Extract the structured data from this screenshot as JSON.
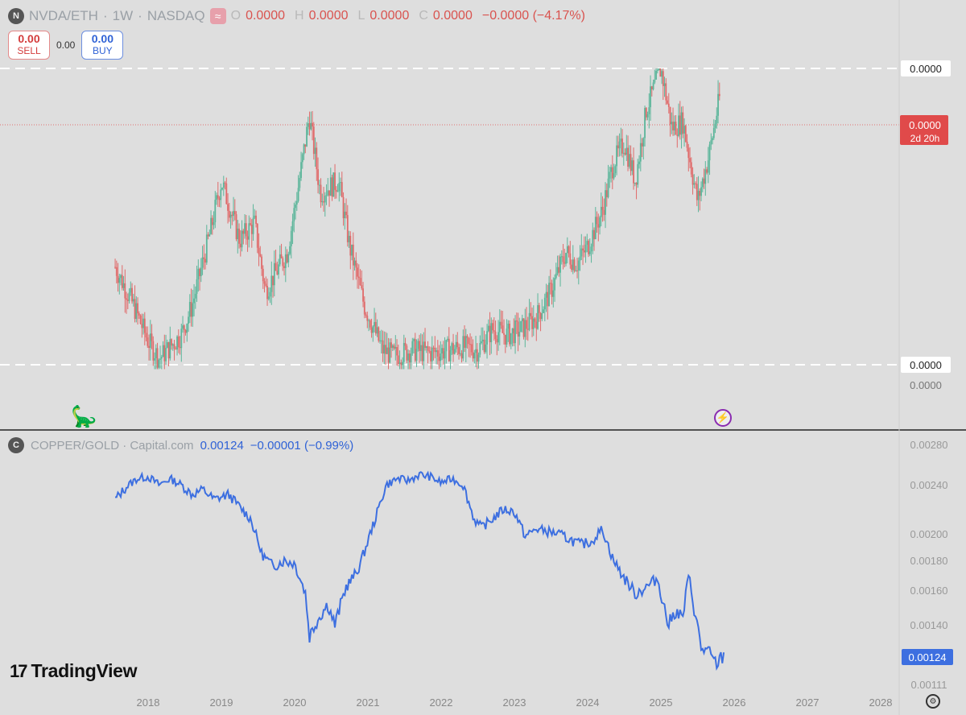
{
  "header": {
    "symbol": "NVDA/ETH",
    "dot": "·",
    "interval": "1W",
    "exchange": "NASDAQ",
    "o_label": "O",
    "o_val": "0.0000",
    "h_label": "H",
    "h_val": "0.0000",
    "l_label": "L",
    "l_val": "0.0000",
    "c_label": "C",
    "c_val": "0.0000",
    "change": "−0.0000 (−4.17%)"
  },
  "trade": {
    "sell_price": "0.00",
    "sell_label": "SELL",
    "spread": "0.00",
    "buy_price": "0.00",
    "buy_label": "BUY"
  },
  "sub_header": {
    "symbol": "COPPER/GOLD · Capital.com",
    "value": "0.00124",
    "change": "−0.00001 (−0.99%)"
  },
  "branding": {
    "name": "TradingView"
  },
  "colors": {
    "up": "#5bb59a",
    "down": "#e06a6a",
    "line": "#3d6fe0",
    "price_tag": "#e04a4a",
    "accent_tag": "#3d6fe0"
  },
  "chart_data": [
    {
      "type": "candlestick",
      "title": "NVDA/ETH · 1W · NASDAQ",
      "x_axis_ticks": [
        "2018",
        "2019",
        "2020",
        "2021",
        "2022",
        "2023",
        "2024",
        "2025",
        "2026",
        "2027",
        "2028"
      ],
      "price_labels": {
        "upper_dashed": "0.0000",
        "current": "0.0000",
        "countdown": "2d 20h",
        "lower_dashed": "0.0000",
        "bottom": "0.0000"
      },
      "path_values_relative": [
        0.33,
        0.2,
        0.08,
        0.02,
        0.1,
        0.2,
        0.45,
        0.62,
        0.42,
        0.48,
        0.25,
        0.38,
        0.6,
        0.84,
        0.58,
        0.62,
        0.4,
        0.2,
        0.05,
        0.03,
        0.05,
        0.04,
        0.05,
        0.06,
        0.05,
        0.12,
        0.1,
        0.12,
        0.16,
        0.25,
        0.38,
        0.34,
        0.4,
        0.52,
        0.68,
        0.75,
        0.62,
        0.86,
        1.0,
        0.8,
        0.82,
        0.55,
        0.7,
        0.9
      ],
      "path_years": [
        2017.55,
        2017.8,
        2018.0,
        2018.15,
        2018.45,
        2018.6,
        2018.85,
        2019.0,
        2019.25,
        2019.45,
        2019.6,
        2019.9,
        2020.05,
        2020.2,
        2020.35,
        2020.6,
        2020.75,
        2020.95,
        2021.2,
        2021.35,
        2021.6,
        2021.85,
        2022.1,
        2022.3,
        2022.5,
        2022.7,
        2022.9,
        2023.1,
        2023.3,
        2023.5,
        2023.7,
        2023.85,
        2024.0,
        2024.2,
        2024.35,
        2024.5,
        2024.65,
        2024.8,
        2025.0,
        2025.15,
        2025.3,
        2025.5,
        2025.65,
        2025.8
      ]
    },
    {
      "type": "line",
      "title": "COPPER/GOLD · Capital.com",
      "series": [
        {
          "name": "COPPER/GOLD",
          "x": [
            2017.55,
            2017.7,
            2017.85,
            2018.0,
            2018.15,
            2018.3,
            2018.45,
            2018.6,
            2018.75,
            2018.9,
            2019.1,
            2019.25,
            2019.4,
            2019.55,
            2019.7,
            2019.85,
            2020.0,
            2020.15,
            2020.2,
            2020.3,
            2020.45,
            2020.55,
            2020.7,
            2020.85,
            2020.95,
            2021.1,
            2021.25,
            2021.4,
            2021.55,
            2021.7,
            2021.85,
            2022.0,
            2022.15,
            2022.3,
            2022.45,
            2022.55,
            2022.7,
            2022.85,
            2023.0,
            2023.15,
            2023.3,
            2023.45,
            2023.6,
            2023.75,
            2023.9,
            2024.05,
            2024.2,
            2024.35,
            2024.5,
            2024.65,
            2024.8,
            2024.95,
            2025.1,
            2025.2,
            2025.3,
            2025.38,
            2025.45,
            2025.55,
            2025.65,
            2025.75,
            2025.85
          ],
          "y": [
            0.00228,
            0.00238,
            0.00246,
            0.00248,
            0.0024,
            0.00246,
            0.0024,
            0.00232,
            0.00236,
            0.00228,
            0.00232,
            0.00222,
            0.00212,
            0.00185,
            0.00176,
            0.0018,
            0.00178,
            0.00158,
            0.00134,
            0.00142,
            0.00152,
            0.0014,
            0.00162,
            0.00172,
            0.00186,
            0.00212,
            0.0024,
            0.00246,
            0.00244,
            0.0025,
            0.00248,
            0.00242,
            0.00246,
            0.0024,
            0.00212,
            0.00205,
            0.00212,
            0.0022,
            0.00218,
            0.00198,
            0.00204,
            0.00202,
            0.002,
            0.00196,
            0.00192,
            0.00194,
            0.00204,
            0.0018,
            0.00168,
            0.00158,
            0.00162,
            0.00168,
            0.0014,
            0.00148,
            0.00144,
            0.0017,
            0.0015,
            0.00128,
            0.00126,
            0.0012,
            0.00124
          ]
        }
      ],
      "y_axis_ticks": [
        "0.00280",
        "0.00240",
        "0.00200",
        "0.00180",
        "0.00160",
        "0.00140",
        "0.00111"
      ],
      "current_label": "0.00124"
    }
  ]
}
